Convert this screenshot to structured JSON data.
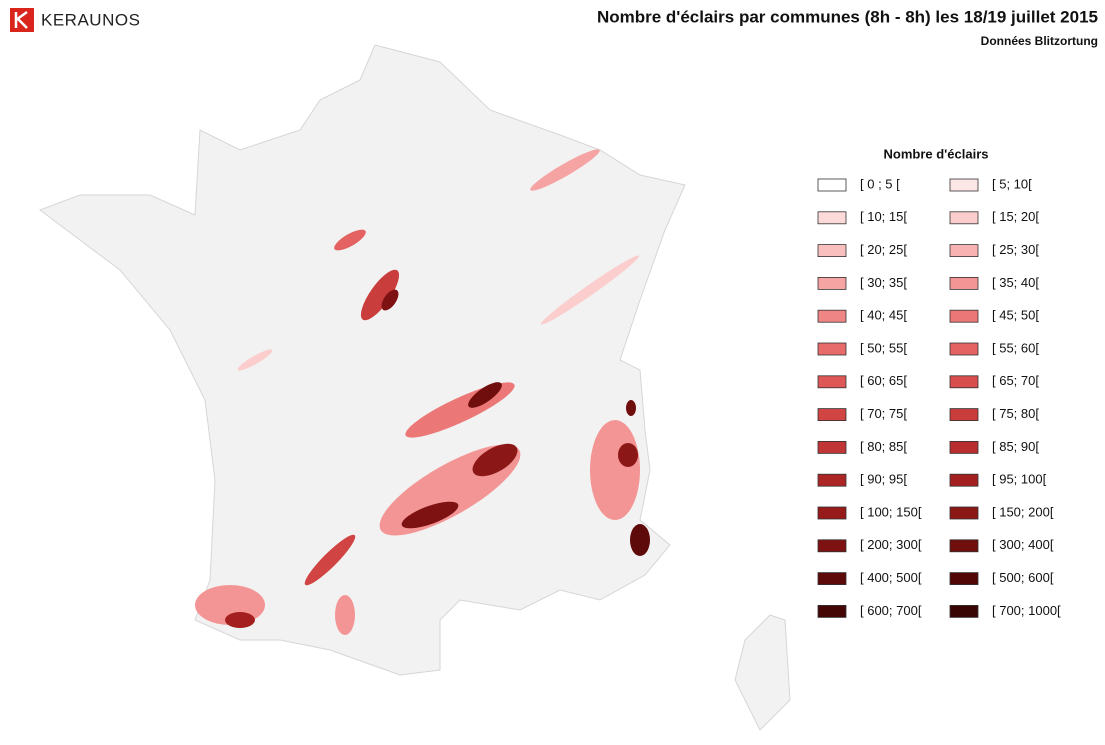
{
  "logo": "KERAUNOS",
  "title": "Nombre d'éclairs par communes (8h - 8h) les 18/19 juillet 2015",
  "subtitle": "Données Blitzortung",
  "legend": {
    "title": "Nombre d'éclairs",
    "items": [
      {
        "label": "[ 0 ; 5 [",
        "color": "#ffffff"
      },
      {
        "label": "[ 5; 10[",
        "color": "#fde6e6"
      },
      {
        "label": "[ 10; 15[",
        "color": "#fcdada"
      },
      {
        "label": "[ 15; 20[",
        "color": "#fbcdcd"
      },
      {
        "label": "[ 20; 25[",
        "color": "#f9bfbf"
      },
      {
        "label": "[ 25; 30[",
        "color": "#f8b2b2"
      },
      {
        "label": "[ 30; 35[",
        "color": "#f6a3a3"
      },
      {
        "label": "[ 35; 40[",
        "color": "#f49595"
      },
      {
        "label": "[ 40; 45[",
        "color": "#f08585"
      },
      {
        "label": "[ 45; 50[",
        "color": "#ec7777"
      },
      {
        "label": "[ 50; 55[",
        "color": "#e86b6b"
      },
      {
        "label": "[ 55; 60[",
        "color": "#e46262"
      },
      {
        "label": "[ 60; 65[",
        "color": "#de5656"
      },
      {
        "label": "[ 65; 70[",
        "color": "#d84d4d"
      },
      {
        "label": "[ 70; 75[",
        "color": "#d04444"
      },
      {
        "label": "[ 75; 80[",
        "color": "#c93d3d"
      },
      {
        "label": "[ 80; 85[",
        "color": "#c03535"
      },
      {
        "label": "[ 85; 90[",
        "color": "#b82e2e"
      },
      {
        "label": "[ 90; 95[",
        "color": "#ad2626"
      },
      {
        "label": "[ 95; 100[",
        "color": "#a42020"
      },
      {
        "label": "[ 100; 150[",
        "color": "#981b1b"
      },
      {
        "label": "[ 150; 200[",
        "color": "#8c1717"
      },
      {
        "label": "[ 200; 300[",
        "color": "#7e1212"
      },
      {
        "label": "[ 300; 400[",
        "color": "#700e0e"
      },
      {
        "label": "[ 400; 500[",
        "color": "#5f0a0a"
      },
      {
        "label": "[ 500; 600[",
        "color": "#520707"
      },
      {
        "label": "[ 600; 700[",
        "color": "#440505"
      },
      {
        "label": "[ 700; 1000[",
        "color": "#380404"
      }
    ]
  }
}
